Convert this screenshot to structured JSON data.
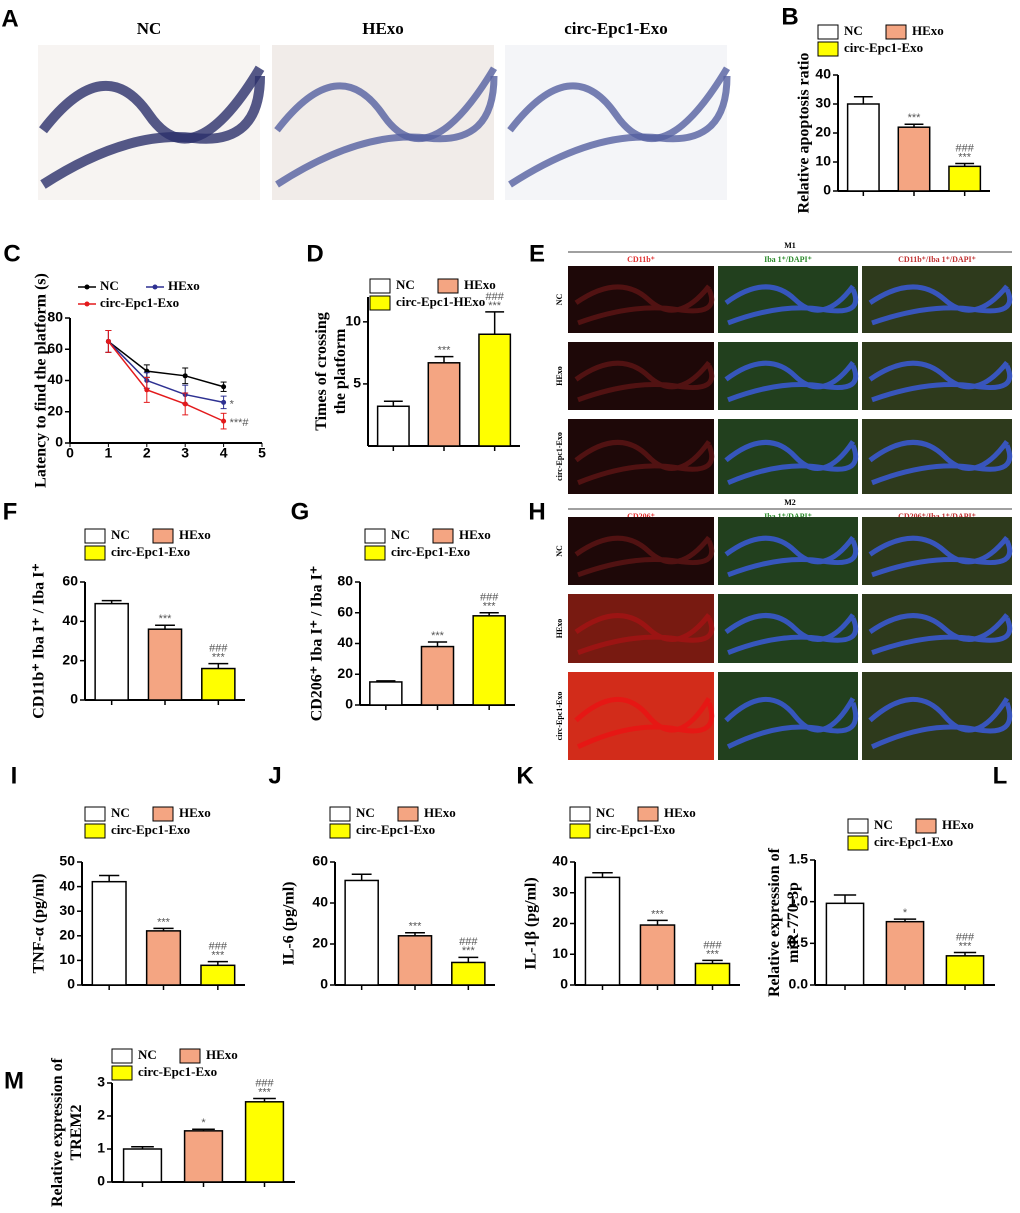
{
  "panel_letters": [
    "A",
    "B",
    "C",
    "D",
    "E",
    "F",
    "G",
    "H",
    "I",
    "J",
    "K",
    "L",
    "M"
  ],
  "histology": {
    "titles": [
      "NC",
      "HExo",
      "circ-Epc1-Exo"
    ]
  },
  "if_panels": [
    {
      "header": "M1",
      "columns": [
        "CD11b⁺",
        "Iba 1⁺/DAPI⁺",
        "CD11b⁺/Iba 1⁺/DAPI⁺"
      ],
      "rows": [
        "NC",
        "HExo",
        "circ-Epc1-Exo"
      ]
    },
    {
      "header": "M2",
      "columns": [
        "CD206⁺",
        "Iba 1⁺/DAPI⁺",
        "CD206⁺/Iba 1⁺/DAPI⁺"
      ],
      "rows": [
        "NC",
        "HExo",
        "circ-Epc1-Exo"
      ]
    }
  ],
  "chart_data": [
    {
      "type": "bar",
      "ylabel": "Relative apoptosis ratio",
      "ylim": [
        0,
        40
      ],
      "yticks": [
        0,
        10,
        20,
        30,
        40
      ],
      "series": [
        {
          "name": "NC",
          "color": "#ffffff",
          "values": [
            30
          ],
          "errors": [
            2.5
          ],
          "annotations": []
        },
        {
          "name": "HExo",
          "color": "#f4a582",
          "values": [
            22
          ],
          "errors": [
            1
          ],
          "annotations": [
            "***"
          ]
        },
        {
          "name": "circ-Epc1-Exo",
          "color": "#ffff00",
          "values": [
            8.5
          ],
          "errors": [
            1
          ],
          "annotations": [
            "###",
            "***"
          ]
        }
      ]
    },
    {
      "type": "line",
      "ylabel": "Latency to find the platform (s)",
      "xlim": [
        0,
        5
      ],
      "xticks": [
        0,
        1,
        2,
        3,
        4,
        5
      ],
      "ylim": [
        0,
        80
      ],
      "yticks": [
        0,
        20,
        40,
        60,
        80
      ],
      "series": [
        {
          "name": "NC",
          "color": "#000000",
          "x": [
            1,
            2,
            3,
            4
          ],
          "values": [
            65,
            46,
            43,
            36
          ],
          "errors": [
            7,
            4,
            5,
            3
          ],
          "annotations": []
        },
        {
          "name": "HExo",
          "color": "#2e3192",
          "x": [
            1,
            2,
            3,
            4
          ],
          "values": [
            65,
            40,
            31,
            26
          ],
          "errors": [
            7,
            5,
            6,
            4
          ],
          "annotations": [
            "*"
          ]
        },
        {
          "name": "circ-Epc1-Exo",
          "color": "#e31a1c",
          "x": [
            1,
            2,
            3,
            4
          ],
          "values": [
            65,
            34,
            25,
            14
          ],
          "errors": [
            7,
            8,
            7,
            5
          ],
          "annotations": [
            "***#"
          ]
        }
      ]
    },
    {
      "type": "bar",
      "ylabel": [
        "Times of crossing",
        "the platform"
      ],
      "ylim": [
        0,
        12
      ],
      "yticks": [
        5,
        10
      ],
      "series": [
        {
          "name": "NC",
          "color": "#ffffff",
          "values": [
            3.2
          ],
          "errors": [
            0.4
          ],
          "annotations": []
        },
        {
          "name": "HExo",
          "color": "#f4a582",
          "values": [
            6.7
          ],
          "errors": [
            0.5
          ],
          "annotations": [
            "***"
          ]
        },
        {
          "name": "circ-Epc1-HExo",
          "color": "#ffff00",
          "values": [
            9
          ],
          "errors": [
            1.8
          ],
          "annotations": [
            "###",
            "***"
          ]
        }
      ]
    },
    {
      "type": "bar",
      "ylabel": "CD11b⁺ Iba I⁺ / Iba I⁺",
      "ylim": [
        0,
        60
      ],
      "yticks": [
        0,
        20,
        40,
        60
      ],
      "series": [
        {
          "name": "NC",
          "color": "#ffffff",
          "values": [
            49
          ],
          "errors": [
            1.5
          ],
          "annotations": []
        },
        {
          "name": "HExo",
          "color": "#f4a582",
          "values": [
            36
          ],
          "errors": [
            2
          ],
          "annotations": [
            "***"
          ]
        },
        {
          "name": "circ-Epc1-Exo",
          "color": "#ffff00",
          "values": [
            16
          ],
          "errors": [
            2.5
          ],
          "annotations": [
            "###",
            "***"
          ]
        }
      ]
    },
    {
      "type": "bar",
      "ylabel": "CD206⁺ Iba I⁺ / Iba I⁺",
      "ylim": [
        0,
        80
      ],
      "yticks": [
        0,
        20,
        40,
        60,
        80
      ],
      "series": [
        {
          "name": "NC",
          "color": "#ffffff",
          "values": [
            15
          ],
          "errors": [
            0.7
          ],
          "annotations": []
        },
        {
          "name": "HExo",
          "color": "#f4a582",
          "values": [
            38
          ],
          "errors": [
            3
          ],
          "annotations": [
            "***"
          ]
        },
        {
          "name": "circ-Epc1-Exo",
          "color": "#ffff00",
          "values": [
            58
          ],
          "errors": [
            2
          ],
          "annotations": [
            "###",
            "***"
          ]
        }
      ]
    },
    {
      "type": "bar",
      "ylabel": "TNF-α  (pg/ml)",
      "ylim": [
        0,
        50
      ],
      "yticks": [
        0,
        10,
        20,
        30,
        40,
        50
      ],
      "series": [
        {
          "name": "NC",
          "color": "#ffffff",
          "values": [
            42
          ],
          "errors": [
            2.5
          ],
          "annotations": []
        },
        {
          "name": "HExo",
          "color": "#f4a582",
          "values": [
            22
          ],
          "errors": [
            1
          ],
          "annotations": [
            "***"
          ]
        },
        {
          "name": "circ-Epc1-Exo",
          "color": "#ffff00",
          "values": [
            8
          ],
          "errors": [
            1.5
          ],
          "annotations": [
            "###",
            "***"
          ]
        }
      ]
    },
    {
      "type": "bar",
      "ylabel": "IL-6 (pg/ml)",
      "ylim": [
        0,
        60
      ],
      "yticks": [
        0,
        20,
        40,
        60
      ],
      "series": [
        {
          "name": "NC",
          "color": "#ffffff",
          "values": [
            51
          ],
          "errors": [
            3
          ],
          "annotations": []
        },
        {
          "name": "HExo",
          "color": "#f4a582",
          "values": [
            24
          ],
          "errors": [
            1.5
          ],
          "annotations": [
            "***"
          ]
        },
        {
          "name": "circ-Epc1-Exo",
          "color": "#ffff00",
          "values": [
            11
          ],
          "errors": [
            2.5
          ],
          "annotations": [
            "###",
            "***"
          ]
        }
      ]
    },
    {
      "type": "bar",
      "ylabel": "IL-1β  (pg/ml)",
      "ylim": [
        0,
        40
      ],
      "yticks": [
        0,
        10,
        20,
        30,
        40
      ],
      "series": [
        {
          "name": "NC",
          "color": "#ffffff",
          "values": [
            35
          ],
          "errors": [
            1.5
          ],
          "annotations": []
        },
        {
          "name": "HExo",
          "color": "#f4a582",
          "values": [
            19.5
          ],
          "errors": [
            1.5
          ],
          "annotations": [
            "***"
          ]
        },
        {
          "name": "circ-Epc1-Exo",
          "color": "#ffff00",
          "values": [
            7
          ],
          "errors": [
            1
          ],
          "annotations": [
            "###",
            "***"
          ]
        }
      ]
    },
    {
      "type": "bar",
      "ylabel": [
        "Relative expression of",
        "miR-770-3p"
      ],
      "ylim": [
        0,
        1.5
      ],
      "yticks": [
        {
          "value": 0,
          "label": "0.0"
        },
        {
          "value": 0.5,
          "label": "0.5"
        },
        {
          "value": 1,
          "label": "1.0"
        },
        {
          "value": 1.5,
          "label": "1.5"
        }
      ],
      "series": [
        {
          "name": "NC",
          "color": "#ffffff",
          "values": [
            0.98
          ],
          "errors": [
            0.1
          ],
          "annotations": []
        },
        {
          "name": "HExo",
          "color": "#f4a582",
          "values": [
            0.76
          ],
          "errors": [
            0.03
          ],
          "annotations": [
            "*"
          ]
        },
        {
          "name": "circ-Epc1-Exo",
          "color": "#ffff00",
          "values": [
            0.35
          ],
          "errors": [
            0.04
          ],
          "annotations": [
            "###",
            "***"
          ]
        }
      ]
    },
    {
      "type": "bar",
      "ylabel": [
        "Relative expression of",
        "TREM2"
      ],
      "ylim": [
        0,
        3
      ],
      "yticks": [
        0,
        1,
        2,
        3
      ],
      "series": [
        {
          "name": "NC",
          "color": "#ffffff",
          "values": [
            1.0
          ],
          "errors": [
            0.07
          ],
          "annotations": []
        },
        {
          "name": "HExo",
          "color": "#f4a582",
          "values": [
            1.55
          ],
          "errors": [
            0.05
          ],
          "annotations": [
            "*"
          ]
        },
        {
          "name": "circ-Epc1-Exo",
          "color": "#ffff00",
          "values": [
            2.43
          ],
          "errors": [
            0.1
          ],
          "annotations": [
            "###",
            "***"
          ]
        }
      ]
    }
  ]
}
